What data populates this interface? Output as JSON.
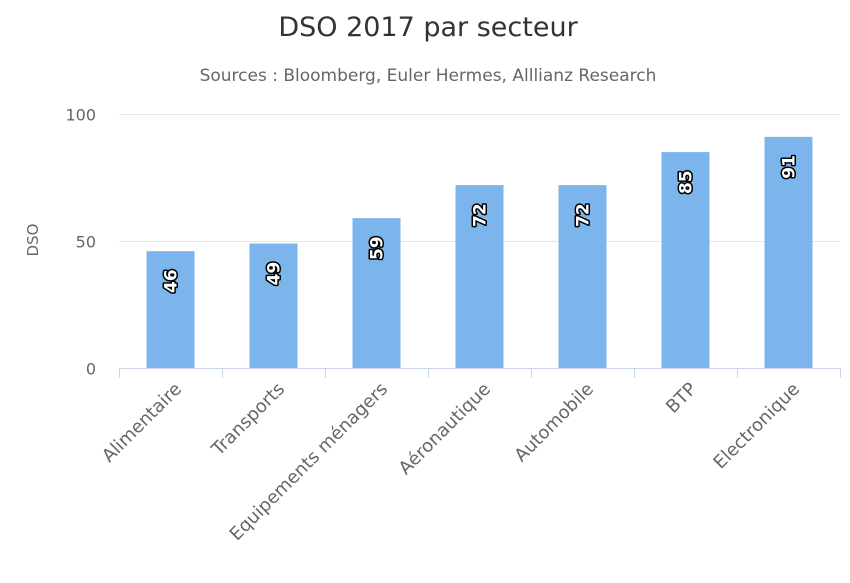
{
  "chart_data": {
    "type": "bar",
    "title": "DSO 2017 par secteur",
    "subtitle": "Sources : Bloomberg, Euler Hermes, Alllianz Research",
    "ylabel": "DSO",
    "xlabel": "",
    "ylim": [
      0,
      100
    ],
    "yticks": [
      0,
      50,
      100
    ],
    "grid": true,
    "legend": "none",
    "categories": [
      "Alimentaire",
      "Transports",
      "Equipements ménagers",
      "Aéronautique",
      "Automobile",
      "BTP",
      "Electronique"
    ],
    "values": [
      46,
      49,
      59,
      72,
      72,
      85,
      91
    ],
    "bar_color": "#7cb5ec",
    "data_labels": [
      "46",
      "49",
      "59",
      "72",
      "72",
      "85",
      "91"
    ]
  }
}
